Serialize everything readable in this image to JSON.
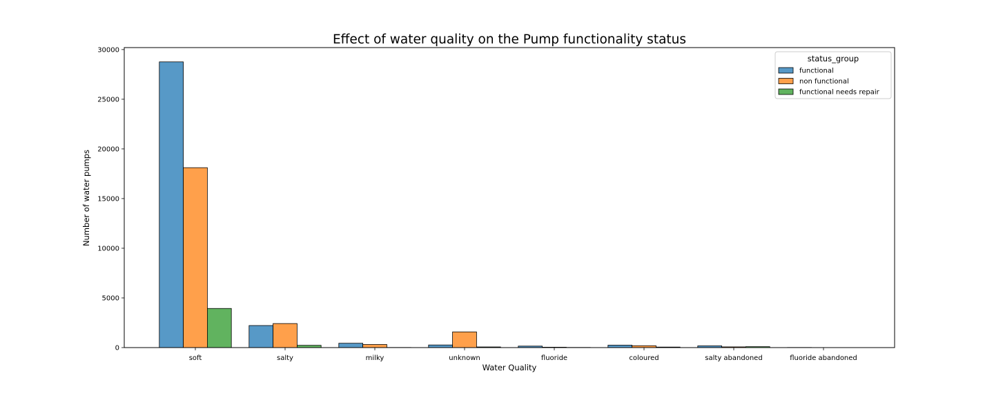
{
  "chart_data": {
    "type": "bar",
    "title": "Effect of water quality on the Pump functionality status",
    "xlabel": "Water Quality",
    "ylabel": "Number of water pumps",
    "categories": [
      "soft",
      "salty",
      "milky",
      "unknown",
      "fluoride",
      "coloured",
      "salty abandoned",
      "fluoride abandoned"
    ],
    "series": [
      {
        "name": "functional",
        "color": "#5799c7",
        "values": [
          28760,
          2220,
          438,
          264,
          151,
          246,
          174,
          14
        ]
      },
      {
        "name": "non functional",
        "color": "#ffa04b",
        "values": [
          18110,
          2420,
          313,
          1580,
          40,
          190,
          72,
          3
        ]
      },
      {
        "name": "functional needs repair",
        "color": "#61b35f",
        "values": [
          3940,
          230,
          14,
          66,
          17,
          54,
          93,
          1
        ]
      }
    ],
    "ylim": [
      0,
      30200
    ],
    "yticks": [
      0,
      5000,
      10000,
      15000,
      20000,
      25000,
      30000
    ],
    "legend": {
      "title": "status_group",
      "placement": "top-right"
    },
    "grid": false
  }
}
